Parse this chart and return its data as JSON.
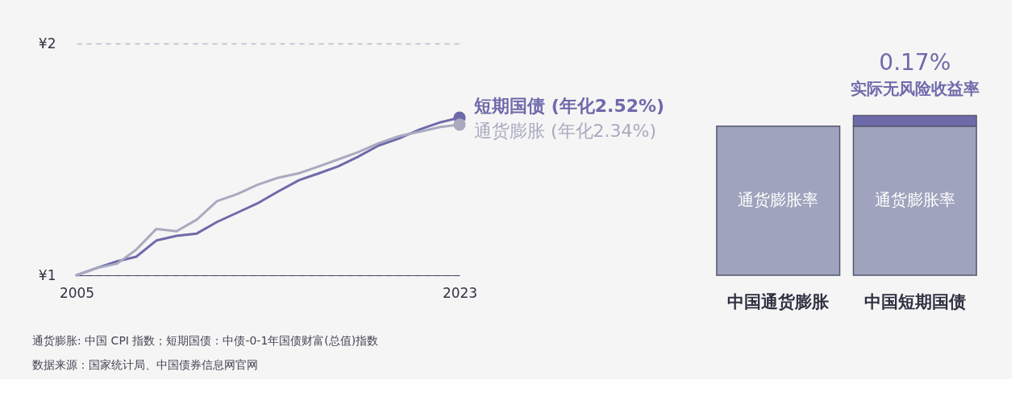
{
  "chart_data": [
    {
      "type": "line",
      "x": [
        2005,
        2005.9,
        2006.9,
        2007.8,
        2008.75,
        2009.7,
        2010.65,
        2011.6,
        2012.55,
        2013.5,
        2014.45,
        2015.45,
        2016.4,
        2017.3,
        2018.2,
        2019.2,
        2020.15,
        2021.15,
        2022.1,
        2023
      ],
      "series": [
        {
          "name": "短期国债 (年化2.52%)",
          "color": "#6e6aaa",
          "values": [
            1.0,
            1.03,
            1.06,
            1.08,
            1.15,
            1.17,
            1.18,
            1.23,
            1.27,
            1.31,
            1.36,
            1.41,
            1.44,
            1.47,
            1.51,
            1.56,
            1.59,
            1.63,
            1.66,
            1.68
          ]
        },
        {
          "name": "通货膨胀 (年化2.34%)",
          "color": "#a9aac0",
          "values": [
            1.0,
            1.03,
            1.05,
            1.11,
            1.2,
            1.19,
            1.24,
            1.32,
            1.35,
            1.39,
            1.42,
            1.44,
            1.47,
            1.5,
            1.53,
            1.57,
            1.6,
            1.62,
            1.64,
            1.65
          ]
        }
      ],
      "xlim": [
        2005,
        2023
      ],
      "xticks": [
        2005,
        2023
      ],
      "ylim": [
        1,
        2
      ],
      "yticks": [
        {
          "value": 1,
          "label": "¥1"
        },
        {
          "value": 2,
          "label": "¥2"
        }
      ],
      "grid": "y",
      "legend": "right",
      "annotations": [
        "通货膨胀: 中国 CPI 指数；短期国债：中债-0-1年国债财富(总值)指数",
        "数据来源：国家统计局、中国债券信息网官网"
      ]
    },
    {
      "type": "bar",
      "stacked": true,
      "tick_labels": "x",
      "categories": [
        "中国通货膨胀",
        "中国短期国债"
      ],
      "series": [
        {
          "name": "通货膨胀率",
          "color": "#a0a3bd",
          "values": [
            2.34,
            2.34
          ]
        },
        {
          "name": "实际无风险收益率",
          "color": "#6e6aaa",
          "values": [
            null,
            0.17
          ],
          "value_labels": [
            null,
            "0.17%"
          ]
        }
      ]
    }
  ]
}
